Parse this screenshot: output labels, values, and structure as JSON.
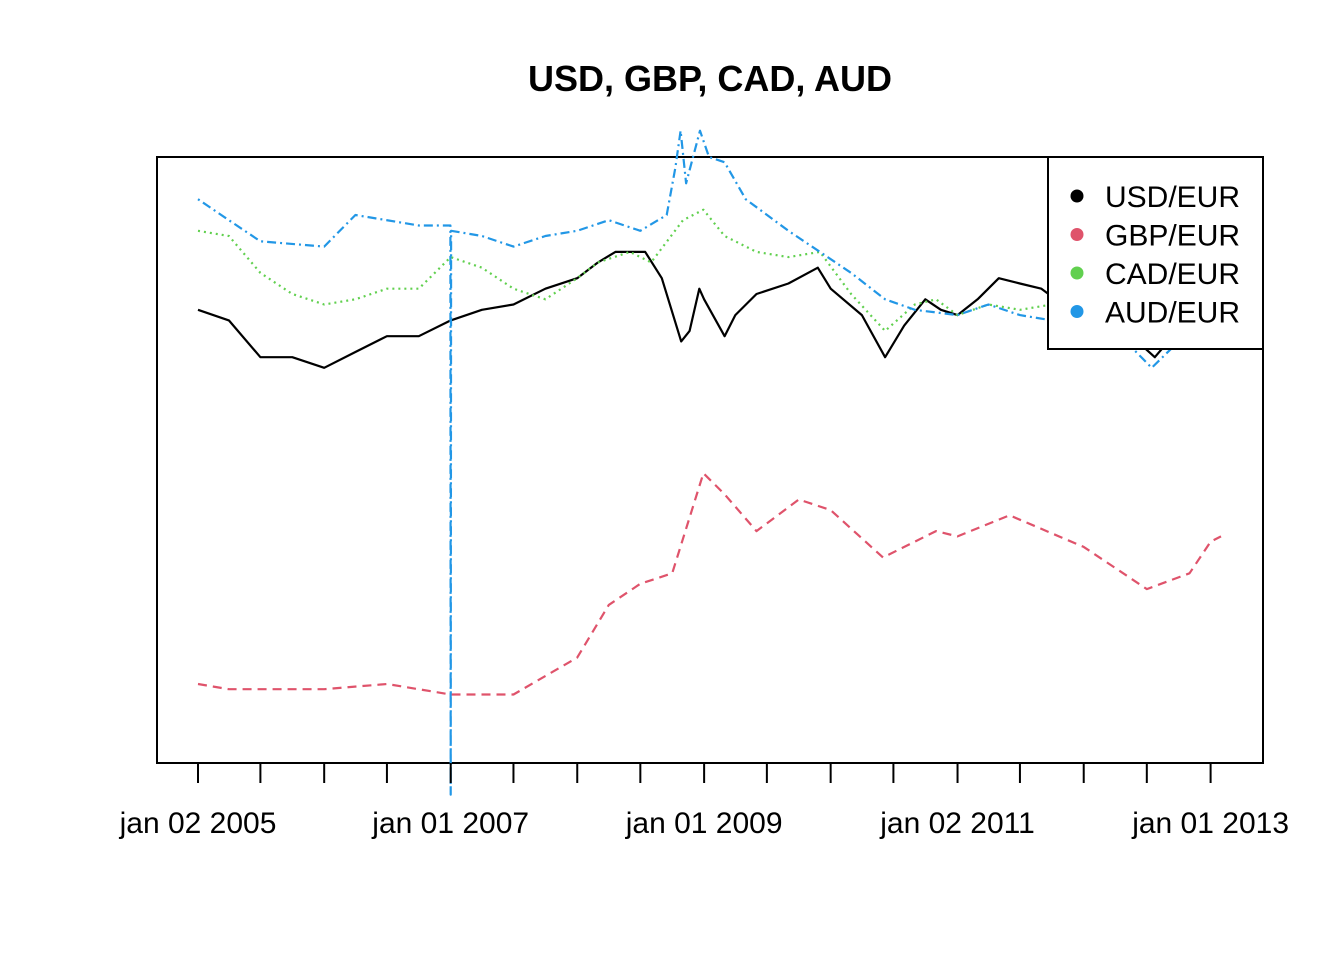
{
  "chart_data": {
    "type": "line",
    "title": "USD, GBP, CAD, AUD",
    "xlabel": "",
    "ylabel": "",
    "x_range": [
      "2005-01-02",
      "2013-01-31"
    ],
    "x_ticks": [
      {
        "date": "2005-01-02",
        "label": "jan 02 2005"
      },
      {
        "date": "2005-07-01",
        "label": ""
      },
      {
        "date": "2006-01-01",
        "label": ""
      },
      {
        "date": "2006-07-01",
        "label": ""
      },
      {
        "date": "2007-01-01",
        "label": "jan 01 2007"
      },
      {
        "date": "2007-07-01",
        "label": ""
      },
      {
        "date": "2008-01-01",
        "label": ""
      },
      {
        "date": "2008-07-01",
        "label": ""
      },
      {
        "date": "2009-01-01",
        "label": "jan 01 2009"
      },
      {
        "date": "2009-07-01",
        "label": ""
      },
      {
        "date": "2010-01-01",
        "label": ""
      },
      {
        "date": "2010-07-01",
        "label": ""
      },
      {
        "date": "2011-01-02",
        "label": "jan 02 2011"
      },
      {
        "date": "2011-07-01",
        "label": ""
      },
      {
        "date": "2012-01-01",
        "label": ""
      },
      {
        "date": "2012-07-01",
        "label": ""
      },
      {
        "date": "2013-01-01",
        "label": "jan 01 2013"
      }
    ],
    "y_range": [
      0.45,
      1.6
    ],
    "y_axis_shown": false,
    "grid": false,
    "legend_position": "top-right",
    "series": [
      {
        "name": "USD/EUR",
        "color": "#000000",
        "dash": "solid",
        "points": [
          [
            "2005-01-02",
            0.74
          ],
          [
            "2005-04-01",
            0.76
          ],
          [
            "2005-07-01",
            0.83
          ],
          [
            "2005-10-01",
            0.83
          ],
          [
            "2006-01-01",
            0.85
          ],
          [
            "2006-04-01",
            0.82
          ],
          [
            "2006-07-01",
            0.79
          ],
          [
            "2006-10-01",
            0.79
          ],
          [
            "2007-01-01",
            0.76
          ],
          [
            "2007-04-01",
            0.74
          ],
          [
            "2007-07-01",
            0.73
          ],
          [
            "2007-10-01",
            0.7
          ],
          [
            "2008-01-01",
            0.68
          ],
          [
            "2008-03-01",
            0.65
          ],
          [
            "2008-04-20",
            0.63
          ],
          [
            "2008-07-15",
            0.63
          ],
          [
            "2008-09-01",
            0.68
          ],
          [
            "2008-10-27",
            0.8
          ],
          [
            "2008-11-20",
            0.78
          ],
          [
            "2008-12-18",
            0.7
          ],
          [
            "2009-01-01",
            0.72
          ],
          [
            "2009-03-01",
            0.79
          ],
          [
            "2009-04-01",
            0.75
          ],
          [
            "2009-06-01",
            0.71
          ],
          [
            "2009-09-01",
            0.69
          ],
          [
            "2009-11-25",
            0.66
          ],
          [
            "2010-01-01",
            0.7
          ],
          [
            "2010-04-01",
            0.75
          ],
          [
            "2010-06-07",
            0.83
          ],
          [
            "2010-08-01",
            0.77
          ],
          [
            "2010-10-01",
            0.72
          ],
          [
            "2010-11-15",
            0.74
          ],
          [
            "2011-01-02",
            0.75
          ],
          [
            "2011-03-01",
            0.72
          ],
          [
            "2011-05-01",
            0.68
          ],
          [
            "2011-07-01",
            0.69
          ],
          [
            "2011-09-01",
            0.7
          ],
          [
            "2011-11-01",
            0.73
          ],
          [
            "2012-01-01",
            0.77
          ],
          [
            "2012-03-01",
            0.75
          ],
          [
            "2012-05-01",
            0.78
          ],
          [
            "2012-07-24",
            0.83
          ],
          [
            "2012-09-01",
            0.8
          ],
          [
            "2012-11-01",
            0.77
          ],
          [
            "2013-01-01",
            0.76
          ],
          [
            "2013-01-31",
            0.74
          ]
        ]
      },
      {
        "name": "GBP/EUR",
        "color": "#DF536B",
        "dash": "dashed",
        "points": [
          [
            "2005-01-02",
            1.45
          ],
          [
            "2005-04-01",
            1.46
          ],
          [
            "2005-07-01",
            1.46
          ],
          [
            "2006-01-01",
            1.46
          ],
          [
            "2006-07-01",
            1.45
          ],
          [
            "2007-01-01",
            1.47
          ],
          [
            "2007-07-01",
            1.47
          ],
          [
            "2008-01-01",
            1.4
          ],
          [
            "2008-04-01",
            1.3
          ],
          [
            "2008-07-01",
            1.26
          ],
          [
            "2008-10-01",
            1.24
          ],
          [
            "2008-12-30",
            1.05
          ],
          [
            "2009-03-01",
            1.09
          ],
          [
            "2009-06-01",
            1.16
          ],
          [
            "2009-10-01",
            1.1
          ],
          [
            "2010-01-01",
            1.12
          ],
          [
            "2010-06-01",
            1.21
          ],
          [
            "2010-11-01",
            1.16
          ],
          [
            "2011-01-02",
            1.17
          ],
          [
            "2011-06-01",
            1.13
          ],
          [
            "2012-01-01",
            1.19
          ],
          [
            "2012-07-01",
            1.27
          ],
          [
            "2012-11-01",
            1.24
          ],
          [
            "2013-01-01",
            1.18
          ],
          [
            "2013-01-31",
            1.17
          ]
        ]
      },
      {
        "name": "CAD/EUR",
        "color": "#61D04F",
        "dash": "dotted",
        "points": [
          [
            "2005-01-02",
            0.59
          ],
          [
            "2005-04-01",
            0.6
          ],
          [
            "2005-07-01",
            0.67
          ],
          [
            "2005-10-01",
            0.71
          ],
          [
            "2006-01-01",
            0.73
          ],
          [
            "2006-04-01",
            0.72
          ],
          [
            "2006-07-01",
            0.7
          ],
          [
            "2006-10-01",
            0.7
          ],
          [
            "2007-01-01",
            0.64
          ],
          [
            "2007-04-01",
            0.66
          ],
          [
            "2007-07-01",
            0.7
          ],
          [
            "2007-10-01",
            0.72
          ],
          [
            "2008-01-01",
            0.68
          ],
          [
            "2008-03-01",
            0.65
          ],
          [
            "2008-06-01",
            0.63
          ],
          [
            "2008-08-01",
            0.65
          ],
          [
            "2008-11-01",
            0.57
          ],
          [
            "2008-12-30",
            0.55
          ],
          [
            "2009-03-01",
            0.6
          ],
          [
            "2009-06-01",
            0.63
          ],
          [
            "2009-09-01",
            0.64
          ],
          [
            "2009-12-01",
            0.63
          ],
          [
            "2010-03-01",
            0.71
          ],
          [
            "2010-06-07",
            0.78
          ],
          [
            "2010-09-01",
            0.73
          ],
          [
            "2010-11-01",
            0.72
          ],
          [
            "2011-01-02",
            0.75
          ],
          [
            "2011-04-01",
            0.73
          ],
          [
            "2011-07-01",
            0.74
          ],
          [
            "2011-10-01",
            0.73
          ],
          [
            "2012-01-01",
            0.76
          ],
          [
            "2012-03-01",
            0.76
          ],
          [
            "2012-06-01",
            0.78
          ],
          [
            "2012-09-01",
            0.8
          ],
          [
            "2012-11-01",
            0.77
          ],
          [
            "2013-01-01",
            0.76
          ],
          [
            "2013-01-31",
            0.75
          ]
        ]
      },
      {
        "name": "AUD/EUR",
        "color": "#2297E6",
        "dash": "dotdash",
        "points": [
          [
            "2005-01-02",
            0.53
          ],
          [
            "2005-04-01",
            0.57
          ],
          [
            "2005-07-01",
            0.61
          ],
          [
            "2006-01-01",
            0.62
          ],
          [
            "2006-04-01",
            0.56
          ],
          [
            "2006-10-01",
            0.58
          ],
          [
            "2006-12-31",
            0.58
          ],
          [
            "2007-01-01",
            1.66
          ],
          [
            "2007-01-02",
            0.59
          ],
          [
            "2007-04-01",
            0.6
          ],
          [
            "2007-07-01",
            0.62
          ],
          [
            "2007-10-01",
            0.6
          ],
          [
            "2008-01-01",
            0.59
          ],
          [
            "2008-04-01",
            0.57
          ],
          [
            "2008-07-01",
            0.59
          ],
          [
            "2008-09-15",
            0.56
          ],
          [
            "2008-10-10",
            0.47
          ],
          [
            "2008-10-25",
            0.4
          ],
          [
            "2008-11-10",
            0.5
          ],
          [
            "2008-12-20",
            0.4
          ],
          [
            "2009-01-15",
            0.45
          ],
          [
            "2009-03-01",
            0.46
          ],
          [
            "2009-05-01",
            0.53
          ],
          [
            "2009-09-01",
            0.59
          ],
          [
            "2009-12-01",
            0.63
          ],
          [
            "2010-03-01",
            0.67
          ],
          [
            "2010-06-07",
            0.72
          ],
          [
            "2010-09-01",
            0.74
          ],
          [
            "2011-01-02",
            0.75
          ],
          [
            "2011-04-01",
            0.73
          ],
          [
            "2011-07-01",
            0.75
          ],
          [
            "2011-10-01",
            0.76
          ],
          [
            "2012-01-01",
            0.79
          ],
          [
            "2012-03-01",
            0.79
          ],
          [
            "2012-05-01",
            0.8
          ],
          [
            "2012-07-15",
            0.85
          ],
          [
            "2012-10-01",
            0.8
          ],
          [
            "2013-01-01",
            0.79
          ],
          [
            "2013-01-31",
            0.73
          ]
        ]
      }
    ]
  }
}
